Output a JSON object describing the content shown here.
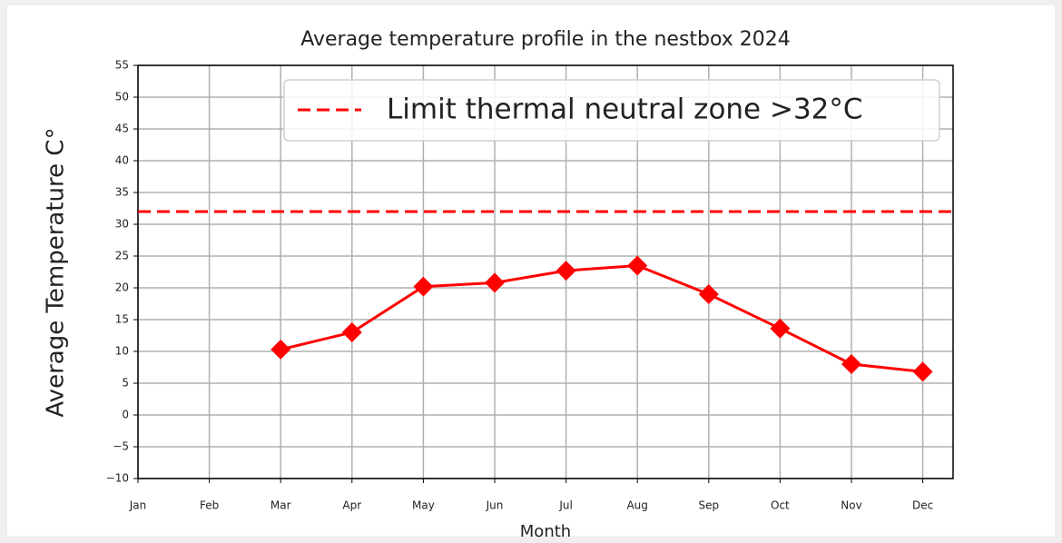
{
  "chart_data": {
    "type": "line",
    "title": "Average temperature profile in the nestbox 2024",
    "x_label": "Month",
    "y_label": "Average Temperature C°",
    "categories": [
      "Jan",
      "Feb",
      "Mar",
      "Apr",
      "May",
      "Jun",
      "Jul",
      "Aug",
      "Sep",
      "Oct",
      "Nov",
      "Dec"
    ],
    "series": [
      {
        "color": "#ff0000",
        "values": [
          null,
          null,
          10.3,
          13,
          20.2,
          20.8,
          22.7,
          23.5,
          19,
          13.6,
          8,
          6.8
        ]
      }
    ],
    "threshold": {
      "value": 32,
      "label": "Limit thermal neutral zone >32°C",
      "color": "#ff0000"
    },
    "ylim": [
      -10,
      55
    ],
    "yticks": [
      {
        "value": -10,
        "label": "−10"
      },
      {
        "value": -5,
        "label": "−5"
      },
      0,
      5,
      10,
      15,
      20,
      25,
      30,
      35,
      40,
      45,
      50,
      55
    ],
    "grid": true,
    "legend_position": "upper right"
  }
}
